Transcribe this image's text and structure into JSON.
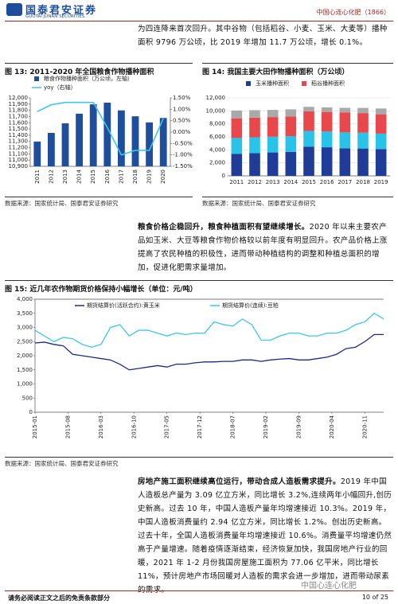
{
  "header": {
    "logo": "国泰君安证券",
    "logo_en": "GUOTAI JUNAN SECURITIES",
    "company": "中国心连心化肥（1866）"
  },
  "intro": "为四连降来首次回升。其中谷物（包括稻谷、小麦、玉米、大麦等）播种面积 9796 万公顷，比 2019 年增加 11.7 万公顷，增长 0.1%。",
  "sources": [
    "数据来源：国家统计局、国泰君安证券研究",
    "数据来源：国家统计局、国泰君安证券研究",
    "数据来源：国家统计局、国泰君安证券研究"
  ],
  "paragraph2": {
    "lead": "粮食价格企稳回升，粮食种植面积有望继续增长。",
    "text": "2020 年以来主要农产品如玉米、大豆等粮食作物价格较以前年度有明显回升。农产品价格上涨提高了农民种植的积极性，进而带动种植结构的调整和种植总面积的增加，促进化肥需求量增加。"
  },
  "paragraph3": {
    "lead": "房地产施工面积继续高位运行，带动合成人造板需求提升。",
    "text": "2019 年中国人造板总产量为 3.09 亿立方米，同比增长 3.2%,连续两年小幅回升,创历史新高。过去 10 年，中国人造板产量年均增速接近 10.3%。2019 年，中国人造板消费量约 2.94 亿立方米，同比增长 1.2%。创出历史新高。过去十年，全国人造板消费量年均增速接近 10.6%。消费量平均增速仍然高于产量增速。随着疫情逐渐结束，经济恢复加快，我国房地产行业的回暖，2021 年 1-2 月份我国房屋施工面积为 77.06 亿平米，同比增长 11%，预计房地产市场回暖对人造板的需求会进一步增加，进而带动尿素的需求。"
  },
  "footer": {
    "disclaimer": "请务必阅读正文之后的免责条款部分",
    "page": "10 of 25",
    "watermark": "中国心连心化肥"
  },
  "chart_data": [
    {
      "type": "bar",
      "title": "图 13: 2011-2020 年全国粮食作物播种面积",
      "categories": [
        "2011",
        "2012",
        "2013",
        "2014",
        "2015",
        "2016",
        "2017",
        "2018",
        "2019",
        "2020"
      ],
      "series": [
        {
          "name": "粮食作物播种面积（万公顷，左轴）",
          "color": "#1f4e9c",
          "type": "bar",
          "values": [
            11298,
            11437,
            11591,
            11746,
            11896,
            11923,
            11799,
            11704,
            11606,
            11677
          ]
        },
        {
          "name": "yoy（右轴）",
          "color": "#3cc6e8",
          "type": "line",
          "axis": "y2",
          "values": [
            0.9,
            1.2,
            1.3,
            1.3,
            1.3,
            0.2,
            -1.0,
            -0.8,
            -0.8,
            0.6
          ]
        }
      ],
      "ylim": [
        10900,
        12000
      ],
      "yticks": [
        {
          "value": 10900,
          "label": "10,900"
        },
        {
          "value": 11000,
          "label": "11,000"
        },
        {
          "value": 11100,
          "label": "11,100"
        },
        {
          "value": 11200,
          "label": "11,200"
        },
        {
          "value": 11300,
          "label": "11,300"
        },
        {
          "value": 11400,
          "label": "11,400"
        },
        {
          "value": 11500,
          "label": "11,500"
        },
        {
          "value": 11600,
          "label": "11,600"
        },
        {
          "value": 11700,
          "label": "11,700"
        },
        {
          "value": 11800,
          "label": "11,800"
        },
        {
          "value": 11900,
          "label": "11,900"
        },
        {
          "value": 12000,
          "label": "12,000"
        }
      ],
      "y2lim": [
        -1.5,
        1.5
      ],
      "y2ticks": [
        {
          "value": 1.5,
          "label": "1.50%"
        },
        {
          "value": 1,
          "label": "1.00%"
        },
        {
          "value": 0.5,
          "label": "0.50%"
        },
        {
          "value": 0,
          "label": "0.00%"
        },
        {
          "value": -0.5,
          "label": "-0.50%"
        },
        {
          "value": -1,
          "label": "-1.00%"
        },
        {
          "value": -1.5,
          "label": "-1.50%"
        }
      ]
    },
    {
      "type": "stacked_bar",
      "title": "图 14: 我国主要大田作物播种面积（万公顷）",
      "categories": [
        "2011",
        "2012",
        "2013",
        "2014",
        "2015",
        "2016",
        "2017",
        "2018",
        "2019"
      ],
      "series": [
        {
          "name": "玉米播种面积",
          "color": "#1f3c99",
          "values": [
            3400,
            3500,
            3600,
            3700,
            4500,
            4400,
            4240,
            4210,
            4130
          ]
        },
        {
          "color": "#29c3ea",
          "values": [
            2430,
            2430,
            2420,
            2410,
            2410,
            2420,
            2450,
            2430,
            2370
          ]
        },
        {
          "name": "稻谷播种面积",
          "color": "#e8474b",
          "values": [
            3030,
            3030,
            3030,
            3030,
            3020,
            3020,
            3080,
            3020,
            2970
          ]
        },
        {
          "color": "#a9a9a9",
          "values": [
            1200,
            1150,
            1100,
            1100,
            700,
            700,
            700,
            800,
            900
          ]
        }
      ],
      "ylim": [
        0,
        12000
      ],
      "yticks": [
        0,
        {
          "value": 2000,
          "label": "2,000"
        },
        {
          "value": 4000,
          "label": "4,000"
        },
        {
          "value": 6000,
          "label": "6,000"
        },
        {
          "value": 8000,
          "label": "8,000"
        },
        {
          "value": 10000,
          "label": "10,000"
        },
        {
          "value": 12000,
          "label": "12,000"
        }
      ],
      "grid": true
    },
    {
      "type": "line",
      "title": "图 15: 近几年农作物期货价格保持小幅增长（单位：元/吨）",
      "x": [
        "2015-01",
        "2015-03",
        "2015-05",
        "2015-07",
        "2015-09",
        "2015-11",
        "2016-01",
        "2016-03",
        "2016-05",
        "2016-07",
        "2016-09",
        "2016-11",
        "2017-01",
        "2017-03",
        "2017-05",
        "2017-07",
        "2017-09",
        "2017-11",
        "2018-01",
        "2018-03",
        "2018-05",
        "2018-07",
        "2018-09",
        "2018-11",
        "2019-01",
        "2019-03",
        "2019-05",
        "2019-07",
        "2019-09",
        "2019-11",
        "2020-01",
        "2020-03",
        "2020-05",
        "2020-07",
        "2020-09",
        "2020-11",
        "2021-01",
        "2021-03"
      ],
      "series": [
        {
          "name": "期货结算价(活跃合约):黄玉米",
          "color": "#1a2a8c",
          "values": [
            2450,
            2480,
            2400,
            2350,
            2050,
            2000,
            1950,
            1900,
            1850,
            1700,
            1500,
            1550,
            1600,
            1650,
            1600,
            1700,
            1700,
            1750,
            1780,
            1780,
            1800,
            1800,
            1850,
            1850,
            1800,
            1850,
            1880,
            1900,
            1850,
            1850,
            1900,
            1950,
            2050,
            2250,
            2300,
            2500,
            2750,
            2750
          ]
        },
        {
          "name": "期货结算价(连续):豆粕",
          "color": "#3cc6e8",
          "values": [
            2900,
            2700,
            2500,
            2650,
            2600,
            2400,
            2300,
            2400,
            3000,
            3100,
            2700,
            2900,
            2900,
            2800,
            2700,
            2800,
            2750,
            2800,
            2800,
            3200,
            3100,
            3050,
            3300,
            3100,
            2550,
            2550,
            2700,
            2800,
            2800,
            2700,
            2700,
            2800,
            2800,
            2900,
            3100,
            3200,
            3500,
            3300
          ]
        }
      ],
      "xticks": [
        "2015-01",
        "2015-08",
        "2016-03",
        "2016-10",
        "2017-05",
        "2017-12",
        "2018-07",
        "2019-02",
        "2019-09",
        "2020-04",
        "2020-11"
      ],
      "ylim": [
        0,
        4000
      ],
      "yticks": [
        0,
        500,
        {
          "value": 1000,
          "label": "1,000"
        },
        {
          "value": 1500,
          "label": "1,500"
        },
        {
          "value": 2000,
          "label": "2,000"
        },
        {
          "value": 2500,
          "label": "2,500"
        },
        {
          "value": 3000,
          "label": "3,000"
        },
        {
          "value": 3500,
          "label": "3,500"
        },
        {
          "value": 4000,
          "label": "4,000"
        }
      ]
    }
  ]
}
